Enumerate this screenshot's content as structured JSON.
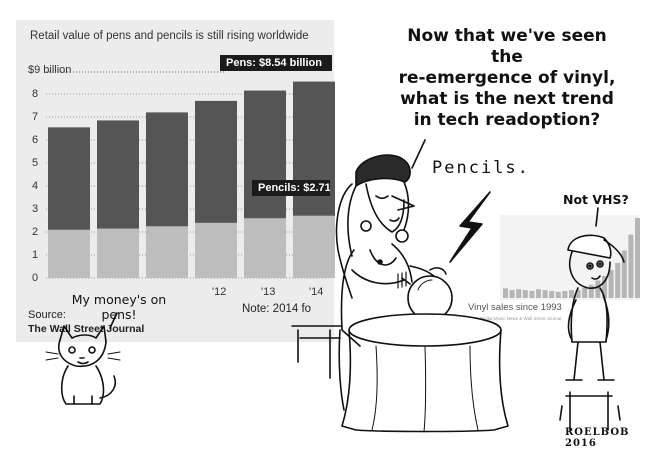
{
  "chart": {
    "title": "Retail value of pens and pencils is still rising worldwide",
    "y_unit_label": "$9 billion",
    "y_ticks": [
      "8",
      "7",
      "6",
      "5",
      "4",
      "3",
      "2",
      "1",
      "0"
    ],
    "x_ticks": [
      "'12",
      "'13",
      "'14"
    ],
    "pens_callout": "Pens: $8.54 billion",
    "pencils_callout": "Pencils: $2.71",
    "source": "Source:",
    "source_org": "The Wall Street Journal",
    "note": "Note: 2014 fo"
  },
  "chart_data": [
    {
      "type": "bar",
      "title": "Retail value of pens and pencils is still rising worldwide",
      "ylabel": "$9 billion",
      "ylim": [
        0,
        9
      ],
      "x_tick_labels": [
        "'12",
        "'13",
        "'14"
      ],
      "series": [
        {
          "name": "Pencils",
          "values": [
            2.1,
            2.15,
            2.25,
            2.4,
            2.6,
            2.71
          ]
        },
        {
          "name": "Pens",
          "values": [
            6.55,
            6.85,
            7.2,
            7.7,
            8.15,
            8.54
          ]
        }
      ],
      "stacked": false
    },
    {
      "type": "bar",
      "title": "Vinyl sales since 1993",
      "values": [
        1.1,
        0.9,
        1.0,
        0.9,
        0.8,
        1.0,
        0.9,
        0.8,
        0.7,
        0.8,
        0.9,
        0.9,
        1.2,
        1.5,
        2.0,
        2.5,
        3.2,
        4.0,
        5.4,
        7.2,
        9.1
      ]
    }
  ],
  "comic": {
    "fortune_teller_lines": [
      "Now that we've seen the",
      "re-emergence of vinyl,",
      "what is the next trend",
      "in tech readoption?"
    ],
    "pencils_reply": "Pencils.",
    "kid_reply": "Not VHS?",
    "cat_lines": [
      "My money's on",
      "pens!"
    ],
    "vinyl_chart_title": "Vinyl sales since 1993",
    "vinyl_chart_source": "Digital Music News & Wall Street Journal",
    "signature": "ROELBOB 2016"
  },
  "colors": {
    "panel": "#ececec",
    "pens_bar": "#555555",
    "pencils_bar": "#bdbdbd",
    "callout_bg": "#1b1b1b",
    "vinyl_bar": "#b5b5b5"
  }
}
